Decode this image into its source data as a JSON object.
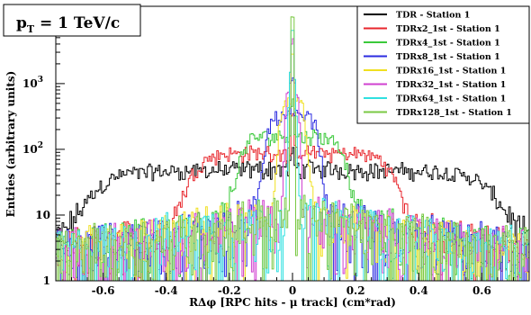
{
  "chart_data": {
    "type": "line",
    "title_label": "p",
    "title_subscript": "T",
    "title_value": " = 1 TeV/c",
    "xlabel": "RΔφ [RPC hits - μ track] (cm*rad)",
    "ylabel": "Entries (arbitrary units)",
    "xlim": [
      -0.75,
      0.75
    ],
    "ylim": [
      1,
      15000
    ],
    "y_scale": "log",
    "x_ticks": [
      {
        "value": -0.6,
        "label": "-0.6"
      },
      {
        "value": -0.4,
        "label": "-0.4"
      },
      {
        "value": -0.2,
        "label": "-0.2"
      },
      {
        "value": 0,
        "label": "0"
      },
      {
        "value": 0.2,
        "label": "0.2"
      },
      {
        "value": 0.4,
        "label": "0.4"
      },
      {
        "value": 0.6,
        "label": "0.6"
      }
    ],
    "y_ticks": [
      {
        "value": 1,
        "label": "1"
      },
      {
        "value": 10,
        "label": "10"
      },
      {
        "value": 100,
        "label": "10",
        "exp": "2"
      },
      {
        "value": 1000,
        "label": "10",
        "exp": "3"
      },
      {
        "value": 10000,
        "label": "10",
        "exp": "4"
      }
    ],
    "legend_position": "top-right",
    "series": [
      {
        "name": "TDR - Station 1",
        "color": "#000000",
        "plateau": 42,
        "halfwidth": 0.62,
        "edge": 0.04,
        "peak": 60
      },
      {
        "name": "TDRx2_1st - Station 1",
        "color": "#e8262c",
        "plateau": 80,
        "halfwidth": 0.31,
        "edge": 0.025,
        "peak": 300
      },
      {
        "name": "TDRx4_1st - Station 1",
        "color": "#3ac93a",
        "plateau": 150,
        "halfwidth": 0.16,
        "edge": 0.015,
        "peak": 600
      },
      {
        "name": "TDRx8_1st - Station 1",
        "color": "#2b2be0",
        "plateau": 300,
        "halfwidth": 0.08,
        "edge": 0.008,
        "peak": 1200
      },
      {
        "name": "TDRx16_1st - Station 1",
        "color": "#f0e020",
        "plateau": 500,
        "halfwidth": 0.04,
        "edge": 0.005,
        "peak": 3000
      },
      {
        "name": "TDRx32_1st - Station 1",
        "color": "#d040d0",
        "plateau": 800,
        "halfwidth": 0.02,
        "edge": 0.003,
        "peak": 6000
      },
      {
        "name": "TDRx64_1st - Station 1",
        "color": "#30e0e0",
        "plateau": 1500,
        "halfwidth": 0.01,
        "edge": 0.002,
        "peak": 10000
      },
      {
        "name": "TDRx128_1st - Station 1",
        "color": "#7ac943",
        "plateau": 2500,
        "halfwidth": 0.005,
        "edge": 0.001,
        "peak": 13000
      }
    ]
  }
}
